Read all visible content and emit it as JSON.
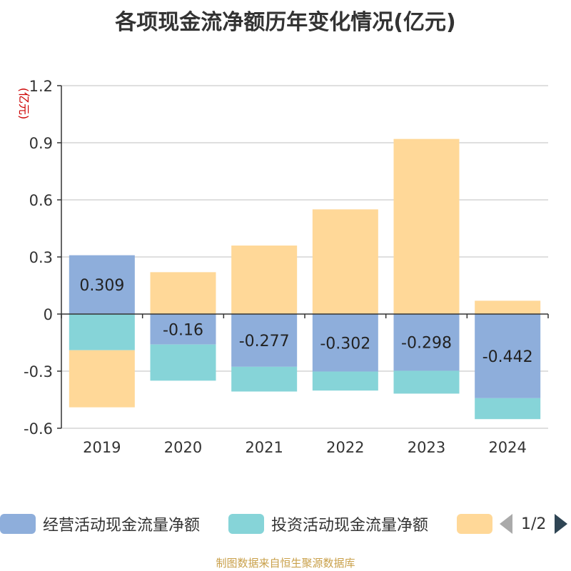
{
  "title": "各项现金流净额历年变化情况(亿元)",
  "source": "制图数据来自恒生聚源数据库",
  "legend": {
    "items": [
      {
        "label": "经营活动现金流量净额",
        "color": "#8eaedb"
      },
      {
        "label": "投资活动现金流量净额",
        "color": "#86d4d8"
      },
      {
        "label": "",
        "color": "#ffd898"
      }
    ],
    "page": "1/2"
  },
  "chart_data": {
    "type": "bar",
    "stacked": true,
    "ylabel": "(亿元)",
    "ylim": [
      -0.6,
      1.2
    ],
    "yticks": [
      "1.2",
      "0.9",
      "0.6",
      "0.3",
      "0",
      "-0.3",
      "-0.6"
    ],
    "categories": [
      "2019",
      "2020",
      "2021",
      "2022",
      "2023",
      "2024"
    ],
    "series": [
      {
        "name": "经营活动现金流量净额",
        "color": "#8eaedb",
        "values": [
          0.309,
          -0.16,
          -0.277,
          -0.302,
          -0.298,
          -0.442
        ],
        "labels": [
          "0.309",
          "-0.16",
          "-0.277",
          "-0.302",
          "-0.298",
          "-0.442"
        ]
      },
      {
        "name": "投资活动现金流量净额",
        "color": "#86d4d8",
        "values": [
          -0.19,
          -0.19,
          -0.13,
          -0.1,
          -0.12,
          -0.11
        ]
      },
      {
        "color": "#ffd898",
        "values": [
          -0.3,
          0.22,
          0.36,
          0.55,
          0.92,
          0.07
        ]
      }
    ],
    "grid": true
  }
}
